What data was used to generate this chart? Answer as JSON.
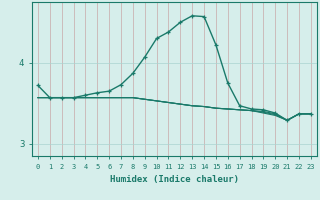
{
  "xlabel": "Humidex (Indice chaleur)",
  "x": [
    0,
    1,
    2,
    3,
    4,
    5,
    6,
    7,
    8,
    9,
    10,
    11,
    12,
    13,
    14,
    15,
    16,
    17,
    18,
    19,
    20,
    21,
    22,
    23
  ],
  "line_main": [
    3.72,
    3.57,
    3.57,
    3.57,
    3.6,
    3.63,
    3.65,
    3.73,
    3.87,
    4.07,
    4.3,
    4.38,
    4.5,
    4.58,
    4.57,
    4.22,
    3.75,
    3.47,
    3.43,
    3.42,
    3.38,
    3.29,
    3.37,
    3.37
  ],
  "line_flat1": [
    3.57,
    3.57,
    3.57,
    3.57,
    3.57,
    3.57,
    3.57,
    3.57,
    3.57,
    3.55,
    3.53,
    3.51,
    3.49,
    3.47,
    3.46,
    3.44,
    3.43,
    3.42,
    3.41,
    3.4,
    3.37,
    3.29,
    3.37,
    3.37
  ],
  "line_flat2": [
    3.57,
    3.57,
    3.57,
    3.57,
    3.57,
    3.57,
    3.57,
    3.57,
    3.57,
    3.55,
    3.53,
    3.51,
    3.49,
    3.47,
    3.46,
    3.44,
    3.43,
    3.42,
    3.41,
    3.39,
    3.36,
    3.29,
    3.37,
    3.37
  ],
  "line_flat3": [
    3.57,
    3.57,
    3.57,
    3.57,
    3.57,
    3.57,
    3.57,
    3.57,
    3.57,
    3.55,
    3.53,
    3.51,
    3.49,
    3.47,
    3.46,
    3.44,
    3.43,
    3.42,
    3.41,
    3.38,
    3.35,
    3.29,
    3.37,
    3.37
  ],
  "line_color": "#1a7a6a",
  "bg_color": "#d6eeeb",
  "grid_color": "#aad4d0",
  "yticks": [
    3,
    4
  ],
  "ylim": [
    2.85,
    4.75
  ],
  "xlim": [
    -0.5,
    23.5
  ]
}
